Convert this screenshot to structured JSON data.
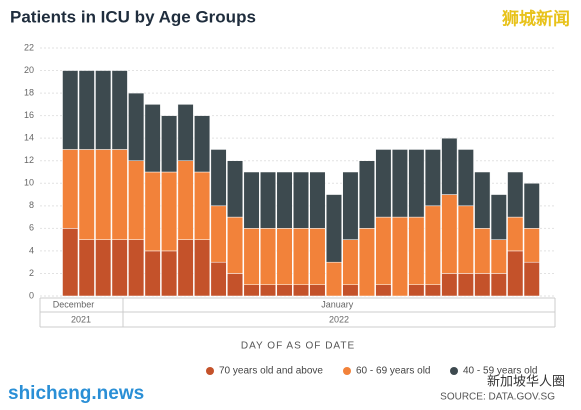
{
  "chart_data": {
    "type": "stacked_bar",
    "title": "Patients in ICU by Age Groups",
    "x_label": "DAY OF AS OF DATE",
    "source": "SOURCE: DATA.GOV.SG",
    "watermarks": [
      "狮城新闻",
      "shicheng.news",
      "新加坡华人圈"
    ],
    "categories": [
      "December",
      null,
      null,
      null,
      null,
      null,
      null,
      null,
      null,
      null,
      null,
      null,
      null,
      null,
      null,
      null,
      "January",
      null,
      null,
      null,
      null,
      null,
      null,
      null,
      null,
      null,
      null,
      null,
      null
    ],
    "years": [
      "2021",
      "2022"
    ],
    "series": [
      {
        "name": "70 years old and above",
        "color": "#c4522a",
        "values": [
          6,
          5,
          5,
          5,
          5,
          4,
          4,
          5,
          5,
          3,
          2,
          1,
          1,
          1,
          1,
          1,
          0,
          1,
          0,
          1,
          0,
          1,
          1,
          2,
          2,
          2,
          2,
          4,
          3
        ]
      },
      {
        "name": "60 - 69 years old",
        "color": "#f2823a",
        "values": [
          7,
          8,
          8,
          8,
          7,
          7,
          7,
          7,
          6,
          5,
          5,
          5,
          5,
          5,
          5,
          5,
          3,
          4,
          6,
          6,
          7,
          6,
          7,
          7,
          6,
          4,
          3,
          3,
          3
        ]
      },
      {
        "name": "40 - 59 years old",
        "color": "#3d4a4f",
        "values": [
          7,
          7,
          7,
          7,
          6,
          6,
          5,
          5,
          5,
          5,
          5,
          5,
          5,
          5,
          5,
          5,
          6,
          6,
          6,
          6,
          6,
          6,
          5,
          5,
          5,
          5,
          4,
          4,
          4
        ]
      }
    ],
    "ylim": [
      0,
      22
    ],
    "yticks": [
      0,
      2,
      4,
      6,
      8,
      10,
      12,
      14,
      16,
      18,
      20,
      22
    ],
    "grid": true
  }
}
